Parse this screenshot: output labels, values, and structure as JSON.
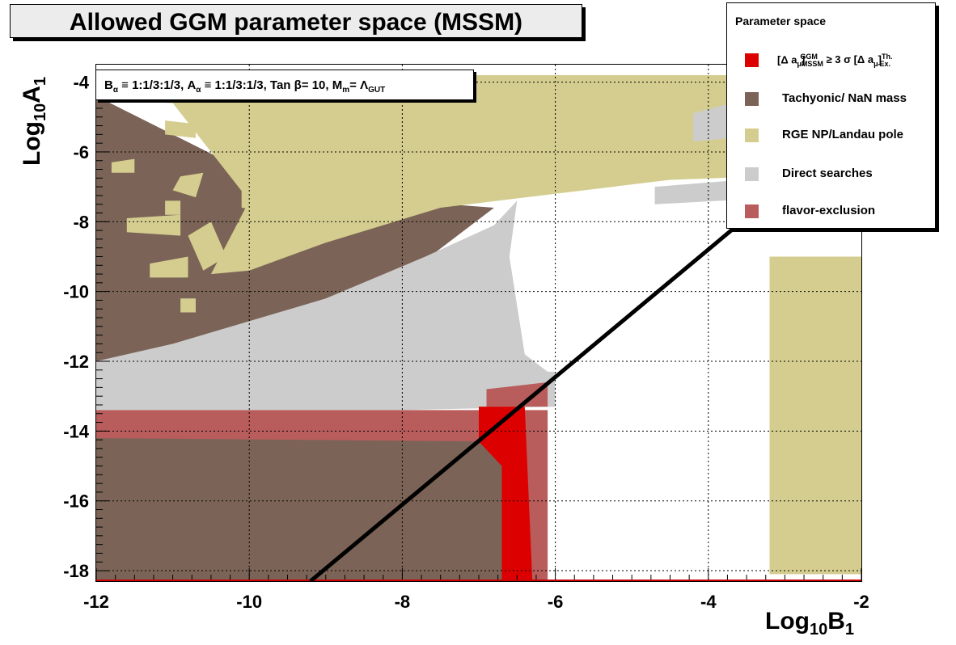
{
  "title": "Allowed GGM parameter space (MSSM)",
  "info_text": {
    "b_prefix": "B",
    "b_sub": "α",
    "b_value": " ≡ 1:1/3:1/3, A",
    "a_sub": "α",
    "a_value": " ≡ 1:1/3:1/3, Tan β= 10, M",
    "m_sub": "m",
    "m_value": "= Λ",
    "gut_sub": "GUT"
  },
  "legend": {
    "title": "Parameter space",
    "items": [
      {
        "label": "[Δ a",
        "sub1": "μ",
        "sup1": "GGM",
        "sub2": "MSSM",
        "mid": " ≥ 3 σ [Δ a",
        "sub3": "μ",
        "sup2": "Th.",
        "sub4": "Ex.",
        "color": "#dd0000"
      },
      {
        "label": "Tachyonic/ NaN mass",
        "color": "#7b6457"
      },
      {
        "label": "RGE NP/Landau pole",
        "color": "#d4cd8f"
      },
      {
        "label": "Direct searches",
        "color": "#cccccc"
      },
      {
        "label": "flavor-exclusion",
        "color": "#b85c5c"
      }
    ]
  },
  "axes": {
    "x_title_main": "Log",
    "x_title_sub": "10",
    "x_title_var": "B",
    "x_title_var_sub": "1",
    "y_title_main": "Log",
    "y_title_sub": "10",
    "y_title_var": "A",
    "y_title_var_sub": "1"
  },
  "chart_data": {
    "type": "heatmap",
    "title": "Allowed GGM parameter space (MSSM)",
    "xlabel": "Log10 B1",
    "ylabel": "Log10 A1",
    "xlim": [
      -12,
      -2
    ],
    "ylim": [
      -18.3,
      -3.5
    ],
    "x_ticks": [
      -12,
      -10,
      -8,
      -6,
      -4,
      -2
    ],
    "x_tick_labels": [
      "-12",
      "-10",
      "-8",
      "-6",
      "-4",
      "-2"
    ],
    "y_ticks": [
      -4,
      -6,
      -8,
      -10,
      -12,
      -14,
      -16,
      -18
    ],
    "y_tick_labels": [
      "-4",
      "-6",
      "-8",
      "-10",
      "-12",
      "-14",
      "-16",
      "-18"
    ],
    "grid": true,
    "legend_position": "top-right",
    "colors": {
      "tachyonic": "#7b6457",
      "rge": "#d4cd8f",
      "direct": "#cccccc",
      "flavor": "#b85c5c",
      "gmu": "#dd0000",
      "allowed": "#ffffff"
    },
    "regions": [
      {
        "name": "Tachyonic/ NaN mass",
        "color": "#7b6457",
        "polygon": [
          [
            -12,
            -4.4
          ],
          [
            -12,
            -18.3
          ],
          [
            -6.2,
            -18.3
          ],
          [
            -6.5,
            -16
          ],
          [
            -6.5,
            -14
          ],
          [
            -8,
            -13.9
          ],
          [
            -12,
            -13.9
          ],
          [
            -12,
            -12
          ],
          [
            -11,
            -11.6
          ],
          [
            -9,
            -10.4
          ],
          [
            -8,
            -9.6
          ],
          [
            -6.8,
            -7.6
          ],
          [
            -8,
            -7.4
          ],
          [
            -10,
            -6.6
          ],
          [
            -12,
            -4.4
          ]
        ]
      },
      {
        "name": "RGE NP/Landau pole",
        "color": "#d4cd8f",
        "polygon": [
          [
            -12,
            -3.8
          ],
          [
            -2,
            -3.8
          ],
          [
            -2,
            -6.6
          ],
          [
            -4.5,
            -6.8
          ],
          [
            -6,
            -7.2
          ],
          [
            -7.5,
            -7.6
          ],
          [
            -9,
            -8.6
          ],
          [
            -10,
            -9.4
          ],
          [
            -10.5,
            -9.5
          ],
          [
            -10,
            -7.4
          ],
          [
            -11,
            -4.6
          ],
          [
            -12,
            -4.5
          ]
        ]
      },
      {
        "name": "RGE NP/Landau pole",
        "color": "#d4cd8f",
        "polygon": [
          [
            -3.2,
            -9
          ],
          [
            -2,
            -9
          ],
          [
            -2,
            -18.1
          ],
          [
            -3.2,
            -18.1
          ]
        ]
      },
      {
        "name": "Direct searches",
        "color": "#cccccc",
        "polygon": [
          [
            -12,
            -12
          ],
          [
            -11,
            -11.5
          ],
          [
            -9,
            -10.2
          ],
          [
            -7.7,
            -9
          ],
          [
            -6.8,
            -8.1
          ],
          [
            -6.5,
            -7.4
          ],
          [
            -6.6,
            -9
          ],
          [
            -6.4,
            -11.8
          ],
          [
            -6.1,
            -12.3
          ],
          [
            -6,
            -12.3
          ],
          [
            -6,
            -13.3
          ],
          [
            -8,
            -13.4
          ],
          [
            -12,
            -13.4
          ]
        ]
      },
      {
        "name": "Direct searches",
        "color": "#cccccc",
        "polygon": [
          [
            -4.7,
            -7.0
          ],
          [
            -3.0,
            -6.7
          ],
          [
            -3.0,
            -7.3
          ],
          [
            -4.7,
            -7.5
          ]
        ]
      },
      {
        "name": "flavor-exclusion",
        "color": "#b85c5c",
        "polygon": [
          [
            -12,
            -13.4
          ],
          [
            -6.1,
            -13.4
          ],
          [
            -6.1,
            -18.3
          ],
          [
            -6.6,
            -18.3
          ],
          [
            -6.7,
            -14.3
          ],
          [
            -12,
            -14.2
          ]
        ]
      },
      {
        "name": "flavor-exclusion",
        "color": "#b85c5c",
        "polygon": [
          [
            -6.9,
            -12.8
          ],
          [
            -6.1,
            -12.6
          ],
          [
            -6.1,
            -13.3
          ],
          [
            -6.9,
            -13.3
          ]
        ]
      },
      {
        "name": "gmu",
        "color": "#dd0000",
        "polygon": [
          [
            -7.0,
            -13.3
          ],
          [
            -6.4,
            -13.3
          ],
          [
            -6.3,
            -18.3
          ],
          [
            -6.7,
            -18.3
          ],
          [
            -6.7,
            -15.0
          ],
          [
            -7.0,
            -14.3
          ]
        ]
      }
    ],
    "line": {
      "name": "boundary",
      "x": [
        -9.2,
        -3.4
      ],
      "y": [
        -18.3,
        -7.7
      ]
    }
  }
}
